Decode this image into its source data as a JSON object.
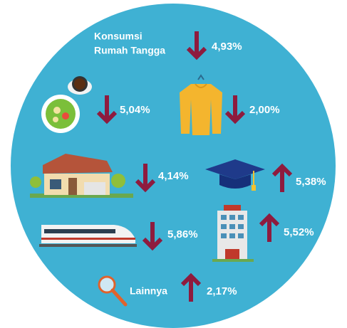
{
  "header": {
    "lines": [
      "Konsumsi",
      "Rumah Tangga"
    ]
  },
  "items": [
    {
      "value": "4,93%",
      "direction": "down"
    },
    {
      "value": "5,04%",
      "direction": "down"
    },
    {
      "value": "2,00%",
      "direction": "down"
    },
    {
      "value": "4,14%",
      "direction": "down"
    },
    {
      "value": "5,38%",
      "direction": "up"
    },
    {
      "value": "5,86%",
      "direction": "down"
    },
    {
      "value": "5,52%",
      "direction": "up"
    },
    {
      "label": "Lainnya",
      "value": "2,17%",
      "direction": "up"
    }
  ]
}
